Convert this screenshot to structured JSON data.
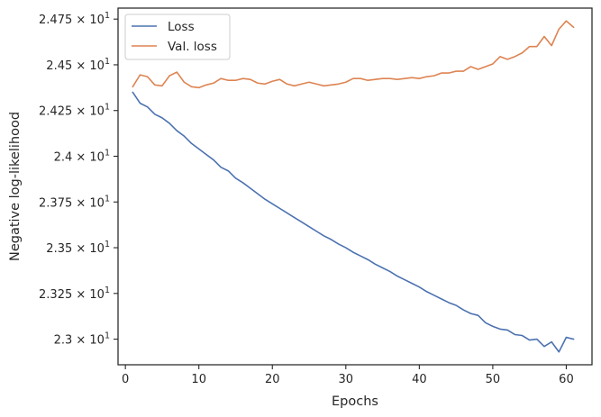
{
  "chart_data": {
    "type": "line",
    "xlabel": "Epochs",
    "ylabel": "Negative log-likelihood",
    "xlim": [
      -1.0,
      63.5
    ],
    "ylim": [
      22.86,
      24.81
    ],
    "x_ticks": [
      0,
      10,
      20,
      30,
      40,
      50,
      60
    ],
    "y_ticks": [
      {
        "value": 23.0,
        "label": "2.3 × 10"
      },
      {
        "value": 23.25,
        "label": "2.325 × 10"
      },
      {
        "value": 23.5,
        "label": "2.35 × 10"
      },
      {
        "value": 23.75,
        "label": "2.375 × 10"
      },
      {
        "value": 24.0,
        "label": "2.4 × 10"
      },
      {
        "value": 24.25,
        "label": "2.425 × 10"
      },
      {
        "value": 24.5,
        "label": "2.45 × 10"
      },
      {
        "value": 24.75,
        "label": "2.475 × 10"
      }
    ],
    "y_tick_exponent": "1",
    "grid": false,
    "legend_position": "top-left",
    "x": [
      1,
      2,
      3,
      4,
      5,
      6,
      7,
      8,
      9,
      10,
      11,
      12,
      13,
      14,
      15,
      16,
      17,
      18,
      19,
      20,
      21,
      22,
      23,
      24,
      25,
      26,
      27,
      28,
      29,
      30,
      31,
      32,
      33,
      34,
      35,
      36,
      37,
      38,
      39,
      40,
      41,
      42,
      43,
      44,
      45,
      46,
      47,
      48,
      49,
      50,
      51,
      52,
      53,
      54,
      55,
      56,
      57,
      58,
      59,
      60,
      61
    ],
    "series": [
      {
        "name": "Loss",
        "color": "#4c72b0",
        "values": [
          24.35,
          24.29,
          24.27,
          24.23,
          24.21,
          24.18,
          24.14,
          24.11,
          24.07,
          24.04,
          24.01,
          23.98,
          23.94,
          23.92,
          23.88,
          23.855,
          23.825,
          23.795,
          23.765,
          23.74,
          23.715,
          23.69,
          23.665,
          23.64,
          23.615,
          23.59,
          23.565,
          23.545,
          23.52,
          23.5,
          23.475,
          23.455,
          23.435,
          23.41,
          23.39,
          23.37,
          23.345,
          23.325,
          23.305,
          23.285,
          23.26,
          23.24,
          23.22,
          23.2,
          23.185,
          23.16,
          23.14,
          23.13,
          23.09,
          23.07,
          23.055,
          23.05,
          23.025,
          23.02,
          22.995,
          23.0,
          22.96,
          22.985,
          22.93,
          23.01,
          23.0
        ]
      },
      {
        "name": "Val. loss",
        "color": "#dd8452",
        "values": [
          24.38,
          24.445,
          24.435,
          24.39,
          24.385,
          24.44,
          24.46,
          24.405,
          24.38,
          24.375,
          24.39,
          24.4,
          24.425,
          24.415,
          24.415,
          24.425,
          24.42,
          24.4,
          24.395,
          24.41,
          24.42,
          24.395,
          24.385,
          24.395,
          24.405,
          24.395,
          24.385,
          24.39,
          24.395,
          24.405,
          24.425,
          24.425,
          24.415,
          24.42,
          24.425,
          24.425,
          24.42,
          24.425,
          24.43,
          24.425,
          24.435,
          24.44,
          24.455,
          24.455,
          24.465,
          24.465,
          24.49,
          24.475,
          24.49,
          24.505,
          24.545,
          24.53,
          24.545,
          24.565,
          24.6,
          24.6,
          24.655,
          24.605,
          24.695,
          24.74,
          24.705
        ]
      }
    ]
  }
}
